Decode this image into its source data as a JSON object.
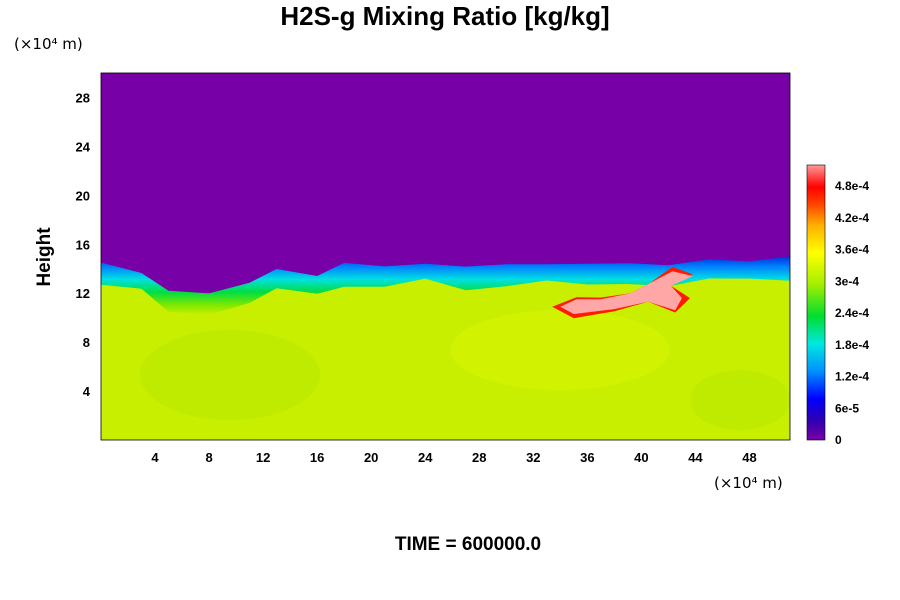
{
  "chart_data": {
    "type": "heatmap",
    "title": "H2S-g Mixing Ratio [kg/kg]",
    "ylabel": "Height",
    "xlabel": "",
    "x_unit": "(×10⁴ m)",
    "y_unit": "(×10⁴ m)",
    "xlim": [
      0,
      51
    ],
    "ylim": [
      0,
      30
    ],
    "x_ticks": [
      "4",
      "8",
      "12",
      "16",
      "20",
      "24",
      "28",
      "32",
      "36",
      "40",
      "44",
      "48"
    ],
    "y_ticks": [
      "4",
      "8",
      "12",
      "16",
      "20",
      "24",
      "28"
    ],
    "colorbar": {
      "range": [
        0,
        0.00052
      ],
      "tick_values": [
        0,
        6e-05,
        0.00012,
        0.00018,
        0.00024,
        0.0003,
        0.00036,
        0.00042,
        0.00048
      ],
      "tick_labels": [
        "0",
        "6e-5",
        "1.2e-4",
        "1.8e-4",
        "2.4e-4",
        "3e-4",
        "3.6e-4",
        "4.2e-4",
        "4.8e-4"
      ]
    },
    "field": {
      "upper_value": 0,
      "lower_value": 0.00034,
      "interface_height": [
        [
          0,
          14.5
        ],
        [
          3,
          13.8
        ],
        [
          5,
          12.0
        ],
        [
          8,
          12.1
        ],
        [
          11,
          12.9
        ],
        [
          13,
          13.8
        ],
        [
          16,
          13.6
        ],
        [
          18,
          14.4
        ],
        [
          21,
          14.1
        ],
        [
          24,
          14.6
        ],
        [
          27,
          14.0
        ],
        [
          30,
          14.4
        ],
        [
          33,
          14.5
        ],
        [
          36,
          14.2
        ],
        [
          39,
          14.6
        ],
        [
          42,
          14.3
        ],
        [
          45,
          14.6
        ],
        [
          48,
          14.8
        ],
        [
          51,
          14.9
        ]
      ],
      "plume": {
        "value": 0.0005,
        "extent_x": [
          34,
          43
        ],
        "extent_y": [
          10.3,
          13.8
        ]
      }
    }
  },
  "footer": {
    "time_label": "TIME = 600000.0"
  }
}
